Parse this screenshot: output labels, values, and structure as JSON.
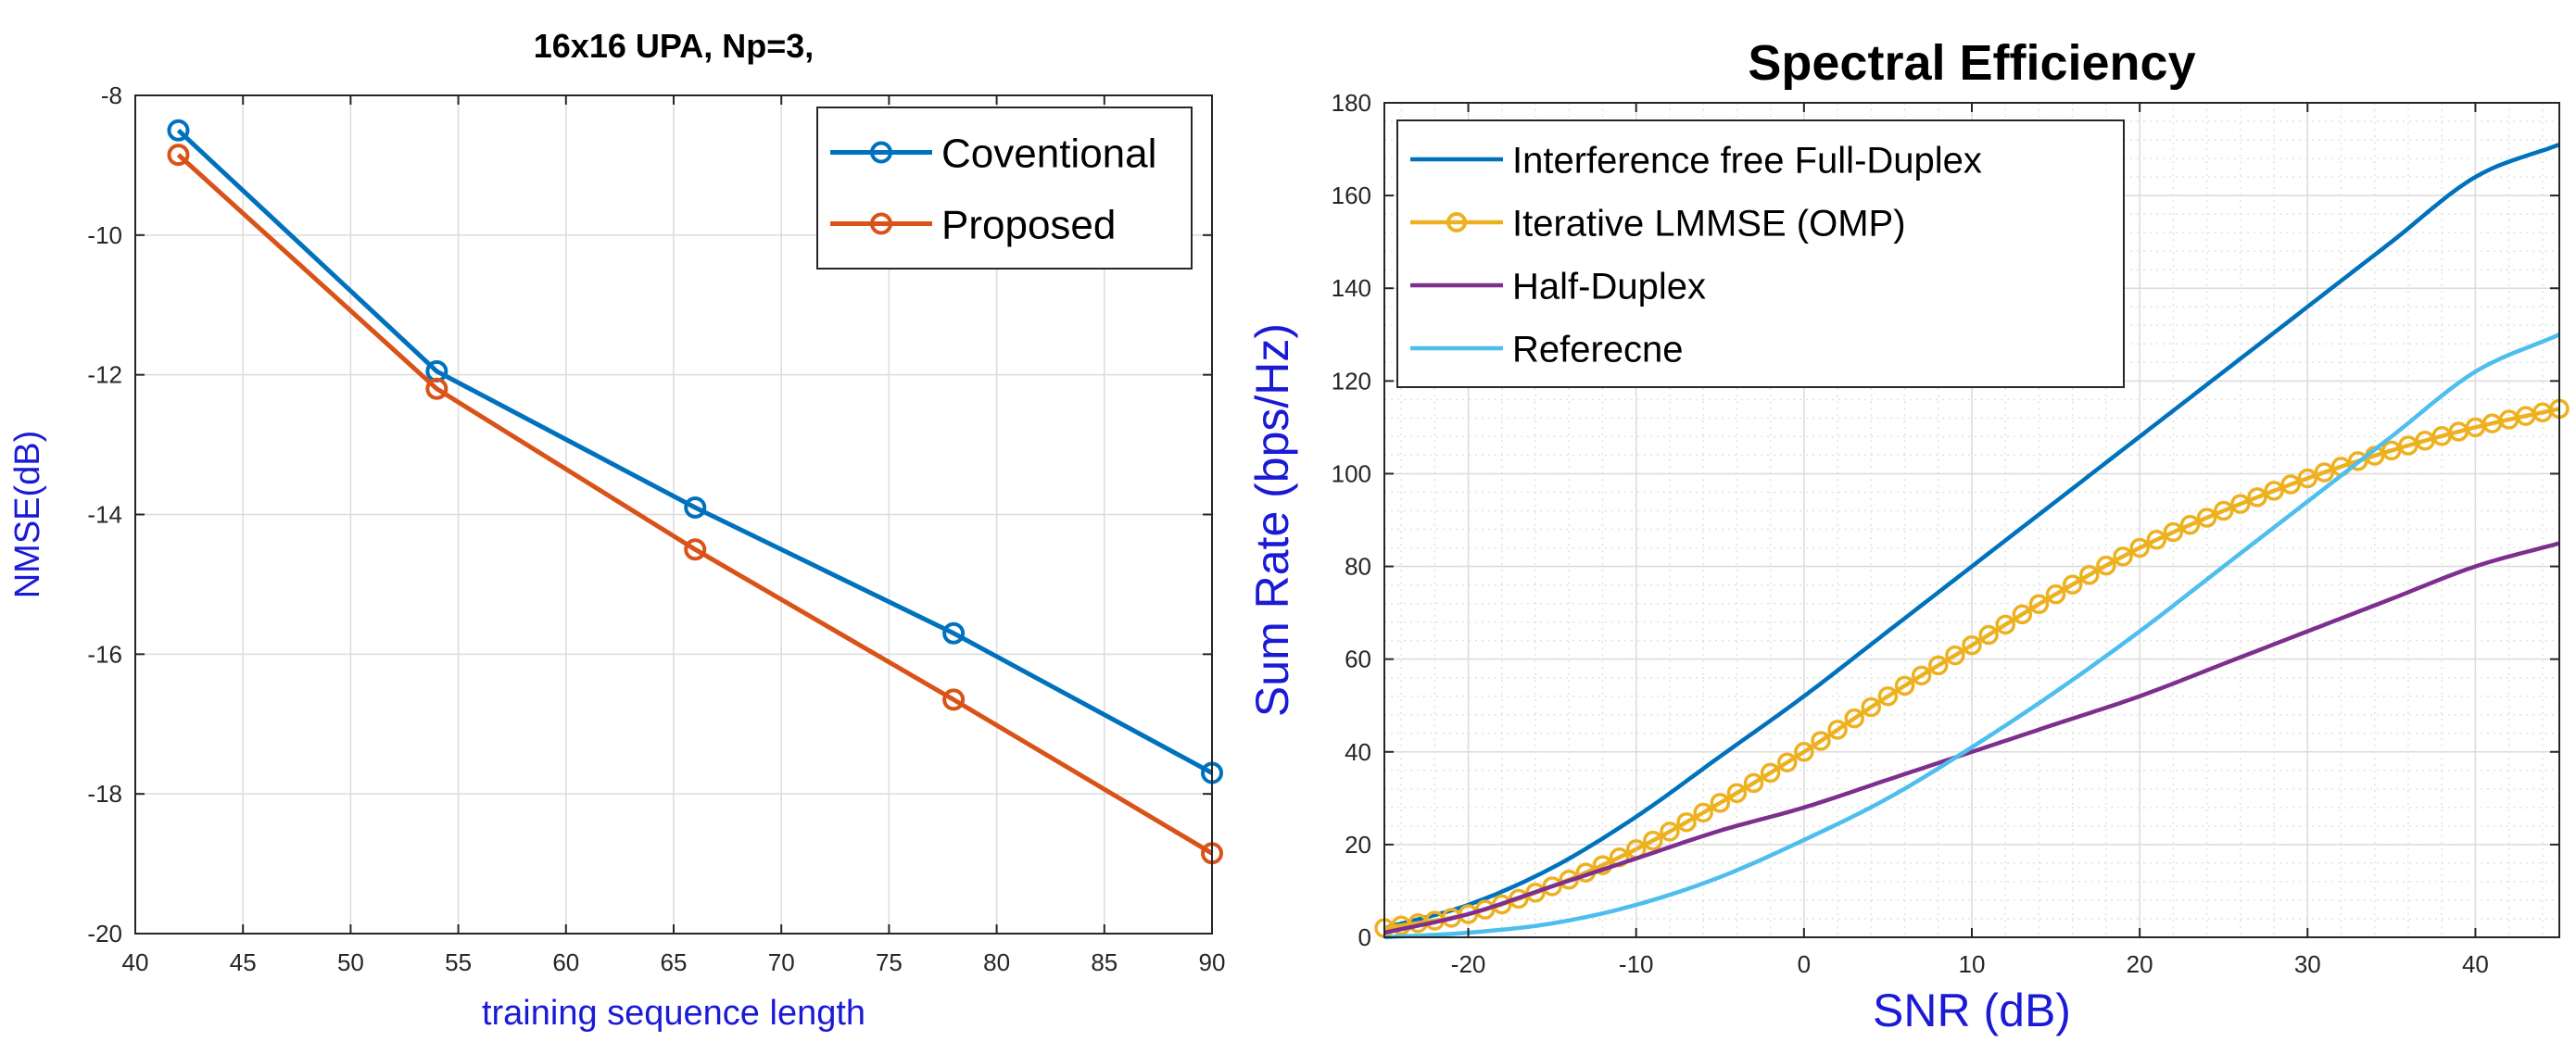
{
  "chart_data": [
    {
      "type": "line",
      "title": "16x16 UPA, Np=3,",
      "xlabel": "training sequence length",
      "ylabel": "NMSE(dB)",
      "xlim": [
        40,
        90
      ],
      "ylim": [
        -20,
        -8
      ],
      "xticks": [
        40,
        45,
        50,
        55,
        60,
        65,
        70,
        75,
        80,
        85,
        90
      ],
      "yticks": [
        -20,
        -18,
        -16,
        -14,
        -12,
        -10,
        -8
      ],
      "grid": true,
      "legend_position": "top-right",
      "x": [
        42,
        54,
        66,
        78,
        90
      ],
      "series": [
        {
          "name": "Coventional",
          "color": "#0072BD",
          "marker": "circle",
          "values": [
            -8.5,
            -11.95,
            -13.9,
            -15.7,
            -17.7
          ]
        },
        {
          "name": "Proposed",
          "color": "#D95319",
          "marker": "circle",
          "values": [
            -8.85,
            -12.2,
            -14.5,
            -16.65,
            -18.85
          ]
        }
      ]
    },
    {
      "type": "line",
      "title": "Spectral Efficiency",
      "xlabel": "SNR (dB)",
      "ylabel": "Sum Rate (bps/Hz)",
      "xlim": [
        -25,
        45
      ],
      "ylim": [
        0,
        180
      ],
      "xticks": [
        -20,
        -10,
        0,
        10,
        20,
        30,
        40
      ],
      "yticks": [
        0,
        20,
        40,
        60,
        80,
        100,
        120,
        140,
        160,
        180
      ],
      "grid": true,
      "minor_grid": true,
      "legend_position": "top-left",
      "x": [
        -25,
        -20,
        -15,
        -10,
        -5,
        0,
        5,
        10,
        15,
        20,
        25,
        30,
        35,
        40,
        45
      ],
      "series": [
        {
          "name": "Interference free Full-Duplex",
          "color": "#0072BD",
          "marker": "none",
          "values": [
            2,
            7,
            15,
            26,
            39,
            52,
            66,
            80,
            94,
            108,
            122,
            136,
            150,
            164,
            171
          ]
        },
        {
          "name": "Iterative LMMSE (OMP)",
          "color": "#EDB120",
          "marker": "circle",
          "values": [
            2,
            5,
            11,
            19,
            29,
            40,
            52,
            63,
            74,
            84,
            92,
            99,
            105,
            110,
            114
          ]
        },
        {
          "name": "Half-Duplex",
          "color": "#7E2F8E",
          "marker": "none",
          "values": [
            1,
            5,
            11,
            17,
            23,
            28,
            34,
            40,
            46,
            52,
            59,
            66,
            73,
            80,
            85
          ]
        },
        {
          "name": "Referecne",
          "color": "#4DBEEE",
          "marker": "none",
          "values": [
            0,
            1,
            3,
            7,
            13,
            21,
            30,
            41,
            53,
            66,
            80,
            94,
            108,
            122,
            130
          ]
        }
      ]
    }
  ]
}
